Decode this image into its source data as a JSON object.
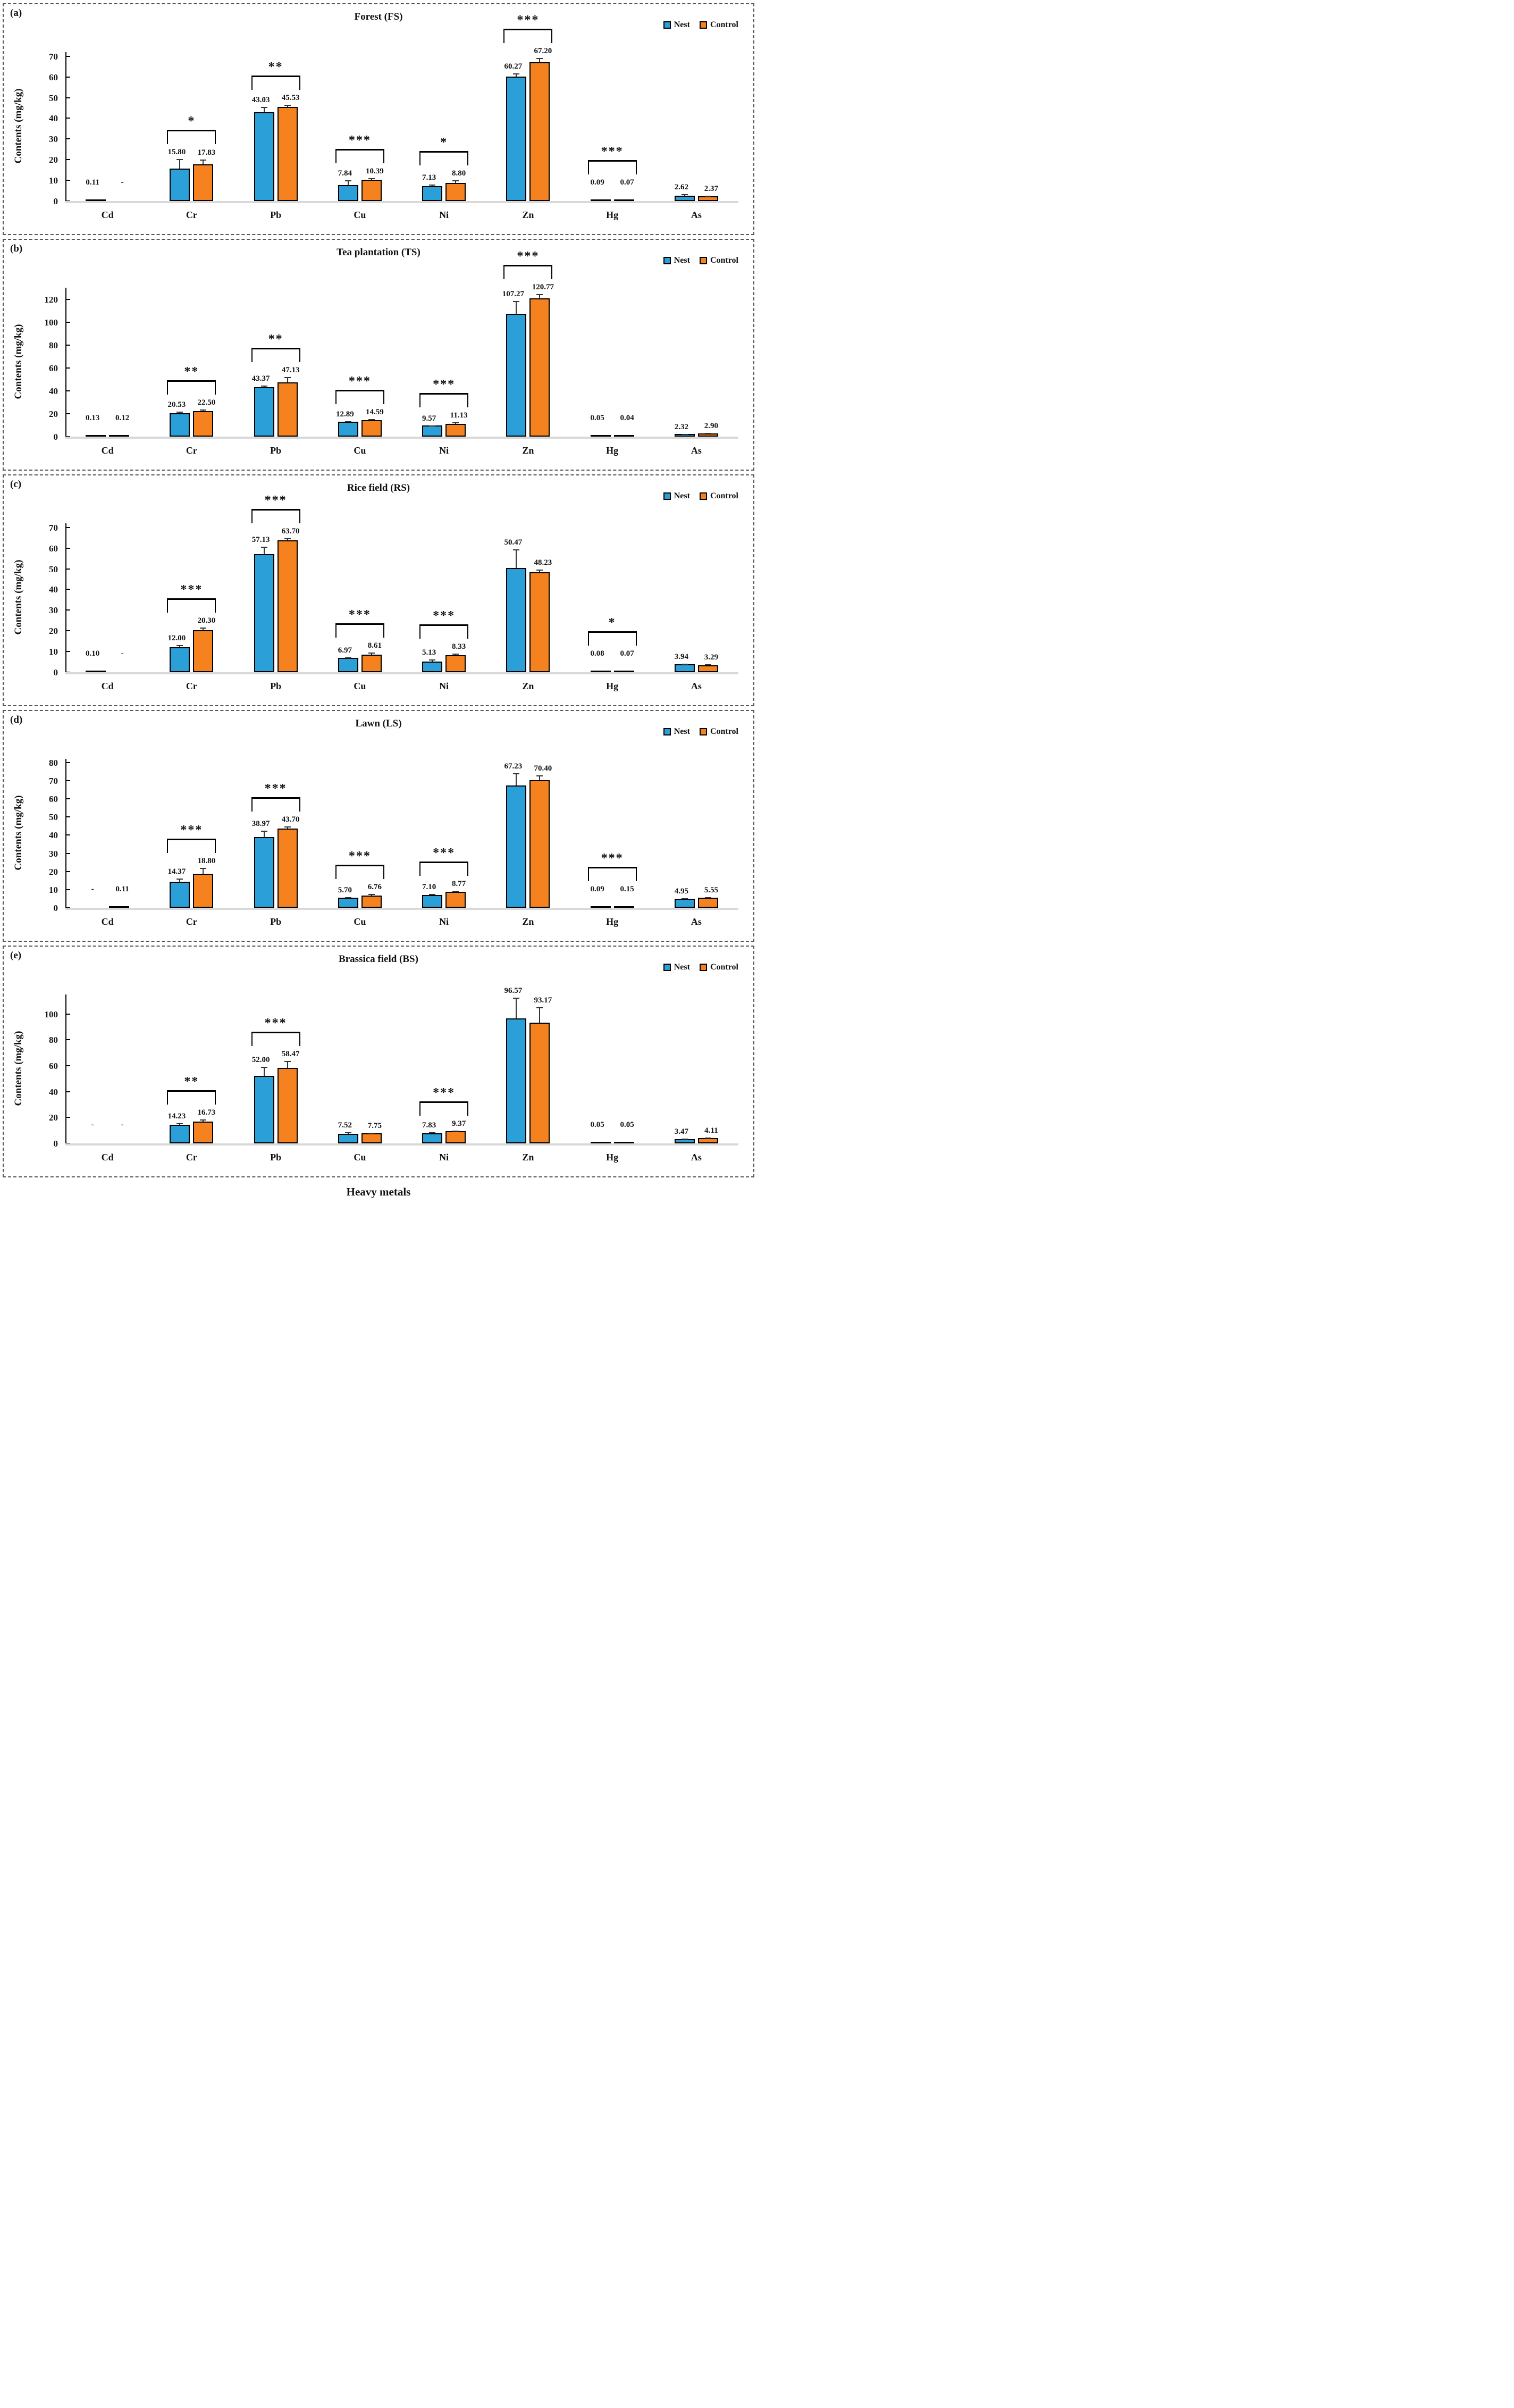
{
  "figure": {
    "xlabel": "Heavy metals",
    "legend": {
      "nest": "Nest",
      "control": "Control"
    },
    "colors": {
      "nest": "#2A9FD8",
      "control": "#F5821F",
      "text": "#111111",
      "axis": "#000000",
      "baseline": "#D9D9D9"
    }
  },
  "chart_data": [
    {
      "type": "bar",
      "panel": "(a)",
      "title": "Forest (FS)",
      "ylabel": "Contents (mg/kg)",
      "xlabel": "Heavy metals",
      "ylim": [
        0,
        72
      ],
      "yticks": [
        0,
        10,
        20,
        30,
        40,
        50,
        60,
        70
      ],
      "grid": false,
      "legend_position": "top-right",
      "categories": [
        "Cd",
        "Cr",
        "Pb",
        "Cu",
        "Ni",
        "Zn",
        "Hg",
        "As"
      ],
      "series": [
        {
          "name": "Nest",
          "values": [
            0.11,
            15.8,
            43.03,
            7.84,
            7.13,
            60.27,
            0.09,
            2.62
          ],
          "labels": [
            "0.11",
            "15.80",
            "43.03",
            "7.84",
            "7.13",
            "60.27",
            "0.09",
            "2.62"
          ],
          "errors": [
            0,
            4.5,
            2.5,
            2.2,
            0.9,
            1.5,
            0,
            0.7
          ]
        },
        {
          "name": "Control",
          "values": [
            null,
            17.83,
            45.53,
            10.39,
            8.8,
            67.2,
            0.07,
            2.37
          ],
          "labels": [
            "-",
            "17.83",
            "45.53",
            "10.39",
            "8.80",
            "67.20",
            "0.07",
            "2.37"
          ],
          "errors": [
            0,
            2.2,
            0.9,
            0.7,
            1.3,
            2.0,
            0,
            0.3
          ]
        }
      ],
      "significance": [
        null,
        "*",
        "**",
        "***",
        "*",
        "***",
        "***",
        null
      ]
    },
    {
      "type": "bar",
      "panel": "(b)",
      "title": "Tea plantation (TS)",
      "ylabel": "Contents (mg/kg)",
      "xlabel": "Heavy metals",
      "ylim": [
        0,
        130
      ],
      "yticks": [
        0,
        20,
        40,
        60,
        80,
        100,
        120
      ],
      "grid": false,
      "legend_position": "top-right",
      "categories": [
        "Cd",
        "Cr",
        "Pb",
        "Cu",
        "Ni",
        "Zn",
        "Hg",
        "As"
      ],
      "series": [
        {
          "name": "Nest",
          "values": [
            0.13,
            20.53,
            43.37,
            12.89,
            9.57,
            107.27,
            0.05,
            2.32
          ],
          "labels": [
            "0.13",
            "20.53",
            "43.37",
            "12.89",
            "9.57",
            "107.27",
            "0.05",
            "2.32"
          ],
          "errors": [
            0,
            1.5,
            1.2,
            0.5,
            0.4,
            11.0,
            0,
            0.2
          ]
        },
        {
          "name": "Control",
          "values": [
            0.12,
            22.5,
            47.13,
            14.59,
            11.13,
            120.77,
            0.04,
            2.9
          ],
          "labels": [
            "0.12",
            "22.50",
            "47.13",
            "14.59",
            "11.13",
            "120.77",
            "0.04",
            "2.90"
          ],
          "errors": [
            0,
            1.2,
            5.0,
            0.5,
            1.5,
            3.5,
            0,
            0.3
          ]
        }
      ],
      "significance": [
        null,
        "**",
        "**",
        "***",
        "***",
        "***",
        null,
        null
      ]
    },
    {
      "type": "bar",
      "panel": "(c)",
      "title": "Rice field (RS)",
      "ylabel": "Contents (mg/kg)",
      "xlabel": "Heavy metals",
      "ylim": [
        0,
        72
      ],
      "yticks": [
        0,
        10,
        20,
        30,
        40,
        50,
        60,
        70
      ],
      "grid": false,
      "legend_position": "top-right",
      "categories": [
        "Cd",
        "Cr",
        "Pb",
        "Cu",
        "Ni",
        "Zn",
        "Hg",
        "As"
      ],
      "series": [
        {
          "name": "Nest",
          "values": [
            0.1,
            12.0,
            57.13,
            6.97,
            5.13,
            50.47,
            0.08,
            3.94
          ],
          "labels": [
            "0.10",
            "12.00",
            "57.13",
            "6.97",
            "5.13",
            "50.47",
            "0.08",
            "3.94"
          ],
          "errors": [
            0,
            1.2,
            3.5,
            0.3,
            1.0,
            9.0,
            0,
            0.3
          ]
        },
        {
          "name": "Control",
          "values": [
            null,
            20.3,
            63.7,
            8.61,
            8.33,
            48.23,
            0.07,
            3.29
          ],
          "labels": [
            "-",
            "20.30",
            "63.70",
            "8.61",
            "8.33",
            "48.23",
            "0.07",
            "3.29"
          ],
          "errors": [
            0,
            1.2,
            1.0,
            0.8,
            0.7,
            1.5,
            0.3,
            0.5
          ]
        }
      ],
      "significance": [
        null,
        "***",
        "***",
        "***",
        "***",
        null,
        "*",
        null
      ]
    },
    {
      "type": "bar",
      "panel": "(d)",
      "title": "Lawn (LS)",
      "ylabel": "Contents (mg/kg)",
      "xlabel": "Heavy metals",
      "ylim": [
        0,
        82
      ],
      "yticks": [
        0,
        10,
        20,
        30,
        40,
        50,
        60,
        70,
        80
      ],
      "grid": false,
      "legend_position": "top-right",
      "categories": [
        "Cd",
        "Cr",
        "Pb",
        "Cu",
        "Ni",
        "Zn",
        "Hg",
        "As"
      ],
      "series": [
        {
          "name": "Nest",
          "values": [
            null,
            14.37,
            38.97,
            5.7,
            7.1,
            67.23,
            0.09,
            4.95
          ],
          "labels": [
            "-",
            "14.37",
            "38.97",
            "5.70",
            "7.10",
            "67.23",
            "0.09",
            "4.95"
          ],
          "errors": [
            0,
            1.8,
            3.5,
            0.3,
            0.6,
            7.0,
            0,
            0.4
          ]
        },
        {
          "name": "Control",
          "values": [
            0.11,
            18.8,
            43.7,
            6.76,
            8.77,
            70.4,
            0.15,
            5.55
          ],
          "labels": [
            "0.11",
            "18.80",
            "43.70",
            "6.76",
            "8.77",
            "70.40",
            "0.15",
            "5.55"
          ],
          "errors": [
            0,
            3.2,
            1.0,
            1.0,
            0.5,
            2.5,
            0,
            0.2
          ]
        }
      ],
      "significance": [
        null,
        "***",
        "***",
        "***",
        "***",
        null,
        "***",
        null
      ]
    },
    {
      "type": "bar",
      "panel": "(e)",
      "title": "Brassica field (BS)",
      "ylabel": "Contents (mg/kg)",
      "xlabel": "Heavy metals",
      "ylim": [
        0,
        115
      ],
      "yticks": [
        0,
        20,
        40,
        60,
        80,
        100
      ],
      "grid": false,
      "legend_position": "top-right",
      "categories": [
        "Cd",
        "Cr",
        "Pb",
        "Cu",
        "Ni",
        "Zn",
        "Hg",
        "As"
      ],
      "series": [
        {
          "name": "Nest",
          "values": [
            null,
            14.23,
            52.0,
            7.52,
            7.83,
            96.57,
            0.05,
            3.47
          ],
          "labels": [
            "-",
            "14.23",
            "52.00",
            "7.52",
            "7.83",
            "96.57",
            "0.05",
            "3.47"
          ],
          "errors": [
            0,
            1.5,
            7.0,
            1.2,
            0.8,
            16.0,
            0,
            0.4
          ]
        },
        {
          "name": "Control",
          "values": [
            null,
            16.73,
            58.47,
            7.75,
            9.37,
            93.17,
            0.05,
            4.11
          ],
          "labels": [
            "-",
            "16.73",
            "58.47",
            "7.75",
            "9.37",
            "93.17",
            "0.05",
            "4.11"
          ],
          "errors": [
            0,
            1.8,
            5.0,
            0.4,
            0.5,
            12.0,
            0,
            0.5
          ]
        }
      ],
      "significance": [
        null,
        "**",
        "***",
        null,
        "***",
        null,
        null,
        null
      ]
    }
  ]
}
